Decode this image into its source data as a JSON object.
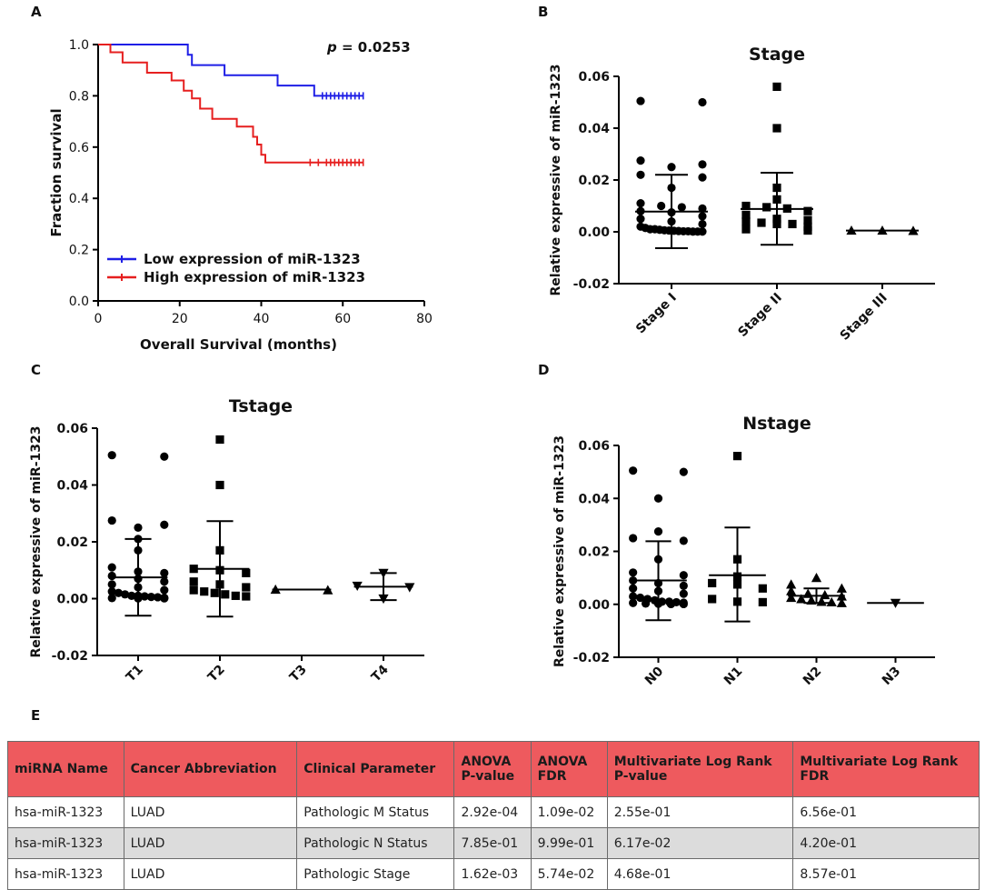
{
  "panel_labels": [
    "A",
    "B",
    "C",
    "D",
    "E"
  ],
  "chart_data": [
    {
      "panel": "A",
      "type": "line",
      "subtype": "kaplan-meier",
      "title": "",
      "annotation": "p = 0.0253",
      "annotation_parts": {
        "italic": "p",
        "rest": " = 0.0253"
      },
      "xlabel": "Overall Survival (months)",
      "ylabel": "Fraction survival",
      "xlim": [
        0,
        80
      ],
      "ylim": [
        0,
        1.0
      ],
      "xticks": [
        "0",
        "20",
        "40",
        "60",
        "80"
      ],
      "yticks": [
        "0.0",
        "0.2",
        "0.4",
        "0.6",
        "0.8",
        "1.0"
      ],
      "legend_position": "bottom-left",
      "series": [
        {
          "name": "Low  expression of miR-1323",
          "color": "#1f1fe6",
          "steps": [
            [
              0,
              1.0
            ],
            [
              22,
              1.0
            ],
            [
              22,
              0.96
            ],
            [
              23,
              0.96
            ],
            [
              23,
              0.92
            ],
            [
              31,
              0.92
            ],
            [
              31,
              0.88
            ],
            [
              44,
              0.88
            ],
            [
              44,
              0.84
            ],
            [
              53,
              0.84
            ],
            [
              53,
              0.8
            ],
            [
              65,
              0.8
            ]
          ],
          "censors": [
            55,
            56,
            57,
            58,
            59,
            60,
            61,
            62,
            63,
            64,
            65
          ]
        },
        {
          "name": "High expression of miR-1323",
          "color": "#e61f1f",
          "steps": [
            [
              0,
              1.0
            ],
            [
              3,
              1.0
            ],
            [
              3,
              0.97
            ],
            [
              6,
              0.97
            ],
            [
              6,
              0.93
            ],
            [
              12,
              0.93
            ],
            [
              12,
              0.89
            ],
            [
              18,
              0.89
            ],
            [
              18,
              0.86
            ],
            [
              21,
              0.86
            ],
            [
              21,
              0.82
            ],
            [
              23,
              0.82
            ],
            [
              23,
              0.79
            ],
            [
              25,
              0.79
            ],
            [
              25,
              0.75
            ],
            [
              28,
              0.75
            ],
            [
              28,
              0.71
            ],
            [
              34,
              0.71
            ],
            [
              34,
              0.68
            ],
            [
              38,
              0.68
            ],
            [
              38,
              0.64
            ],
            [
              39,
              0.64
            ],
            [
              39,
              0.61
            ],
            [
              40,
              0.61
            ],
            [
              40,
              0.57
            ],
            [
              41,
              0.57
            ],
            [
              41,
              0.54
            ],
            [
              65,
              0.54
            ]
          ],
          "censors": [
            52,
            54,
            56,
            57,
            58,
            59,
            60,
            61,
            62,
            63,
            64,
            65
          ]
        }
      ]
    },
    {
      "panel": "B",
      "type": "scatter",
      "title": "Stage",
      "xlabel": "",
      "ylabel": "Relative expressive of miR-1323",
      "ylim": [
        -0.02,
        0.06
      ],
      "yticks": [
        "-0.02",
        "0.00",
        "0.02",
        "0.04",
        "0.06"
      ],
      "categories": [
        "Stage I",
        "Stage II",
        "Stage III"
      ],
      "groups": [
        {
          "marker": "circle",
          "mean": 0.0078,
          "sd_low": -0.0063,
          "sd_high": 0.022,
          "points": [
            0.0505,
            0.05,
            0.0275,
            0.026,
            0.025,
            0.022,
            0.021,
            0.017,
            0.011,
            0.01,
            0.0095,
            0.009,
            0.008,
            0.0075,
            0.006,
            0.005,
            0.004,
            0.003,
            0.002,
            0.0015,
            0.001,
            0.001,
            0.0008,
            0.0006,
            0.0005,
            0.0004,
            0.0003,
            0.0002,
            0.0002,
            0.0001,
            0.0001,
            0.0001
          ]
        },
        {
          "marker": "square",
          "mean": 0.0088,
          "sd_low": -0.005,
          "sd_high": 0.0228,
          "points": [
            0.056,
            0.04,
            0.017,
            0.0125,
            0.01,
            0.0095,
            0.009,
            0.008,
            0.0065,
            0.005,
            0.0045,
            0.004,
            0.0035,
            0.003,
            0.003,
            0.002,
            0.001,
            0.0005
          ]
        },
        {
          "marker": "triangle",
          "mean": 0.0005,
          "sd_low": 0.0005,
          "sd_high": 0.0005,
          "points": [
            0.0005,
            0.0004,
            0.0005
          ]
        }
      ]
    },
    {
      "panel": "C",
      "type": "scatter",
      "title": "Tstage",
      "xlabel": "",
      "ylabel": "Relative expressive of miR-1323",
      "ylim": [
        -0.02,
        0.06
      ],
      "yticks": [
        "-0.02",
        "0.00",
        "0.02",
        "0.04",
        "0.06"
      ],
      "categories": [
        "T1",
        "T2",
        "T3",
        "T4"
      ],
      "groups": [
        {
          "marker": "circle",
          "mean": 0.0075,
          "sd_low": -0.006,
          "sd_high": 0.021,
          "points": [
            0.0505,
            0.05,
            0.0275,
            0.026,
            0.025,
            0.021,
            0.017,
            0.011,
            0.0095,
            0.009,
            0.008,
            0.007,
            0.006,
            0.005,
            0.004,
            0.003,
            0.0025,
            0.002,
            0.0015,
            0.001,
            0.001,
            0.0008,
            0.0006,
            0.0005,
            0.0003,
            0.0002,
            0.0001,
            0.0001
          ]
        },
        {
          "marker": "square",
          "mean": 0.0105,
          "sd_low": -0.0063,
          "sd_high": 0.0273,
          "points": [
            0.056,
            0.04,
            0.017,
            0.0105,
            0.01,
            0.009,
            0.006,
            0.005,
            0.004,
            0.003,
            0.0025,
            0.002,
            0.0015,
            0.001,
            0.0008
          ]
        },
        {
          "marker": "triangle",
          "mean": 0.0032,
          "sd_low": 0.0032,
          "sd_high": 0.0032,
          "points": [
            0.0032,
            0.003
          ]
        },
        {
          "marker": "triangle-down",
          "mean": 0.0042,
          "sd_low": -0.0005,
          "sd_high": 0.009,
          "points": [
            0.009,
            0.0045,
            0.004,
            0.0
          ]
        }
      ]
    },
    {
      "panel": "D",
      "type": "scatter",
      "title": "Nstage",
      "xlabel": "",
      "ylabel": "Relative expressive of miR-1323",
      "ylim": [
        -0.02,
        0.06
      ],
      "yticks": [
        "-0.02",
        "0.00",
        "0.02",
        "0.04",
        "0.06"
      ],
      "categories": [
        "N0",
        "N1",
        "N2",
        "N3"
      ],
      "groups": [
        {
          "marker": "circle",
          "mean": 0.009,
          "sd_low": -0.006,
          "sd_high": 0.0238,
          "points": [
            0.0505,
            0.05,
            0.04,
            0.0275,
            0.025,
            0.024,
            0.017,
            0.012,
            0.011,
            0.009,
            0.008,
            0.007,
            0.006,
            0.005,
            0.004,
            0.003,
            0.0025,
            0.002,
            0.0015,
            0.001,
            0.001,
            0.0008,
            0.0006,
            0.0005,
            0.0003,
            0.0002,
            0.0001,
            0.0001
          ]
        },
        {
          "marker": "square",
          "mean": 0.011,
          "sd_low": -0.0065,
          "sd_high": 0.029,
          "points": [
            0.056,
            0.017,
            0.0105,
            0.008,
            0.0075,
            0.006,
            0.002,
            0.001,
            0.0008
          ]
        },
        {
          "marker": "triangle",
          "mean": 0.0032,
          "sd_low": 0.0005,
          "sd_high": 0.006,
          "points": [
            0.01,
            0.0075,
            0.006,
            0.005,
            0.004,
            0.0035,
            0.003,
            0.0025,
            0.002,
            0.0015,
            0.001,
            0.0008,
            0.0005
          ]
        },
        {
          "marker": "triangle-down",
          "mean": 0.0005,
          "sd_low": 0.0005,
          "sd_high": 0.0005,
          "points": [
            0.0005
          ]
        }
      ]
    },
    {
      "panel": "E",
      "type": "table",
      "columns": [
        [
          "miRNA Name"
        ],
        [
          "Cancer Abbreviation"
        ],
        [
          "Clinical Parameter"
        ],
        [
          "ANOVA",
          "P-value"
        ],
        [
          "ANOVA",
          "FDR"
        ],
        [
          "Multivariate Log Rank",
          "P-value"
        ],
        [
          "Multivariate Log Rank",
          "FDR"
        ]
      ],
      "rows": [
        [
          "hsa-miR-1323",
          "LUAD",
          "Pathologic M Status",
          "2.92e-04",
          "1.09e-02",
          "2.55e-01",
          "6.56e-01"
        ],
        [
          "hsa-miR-1323",
          "LUAD",
          "Pathologic N Status",
          "7.85e-01",
          "9.99e-01",
          "6.17e-02",
          "4.20e-01"
        ],
        [
          "hsa-miR-1323",
          "LUAD",
          "Pathologic Stage",
          "1.62e-03",
          "5.74e-02",
          "4.68e-01",
          "8.57e-01"
        ]
      ]
    }
  ]
}
